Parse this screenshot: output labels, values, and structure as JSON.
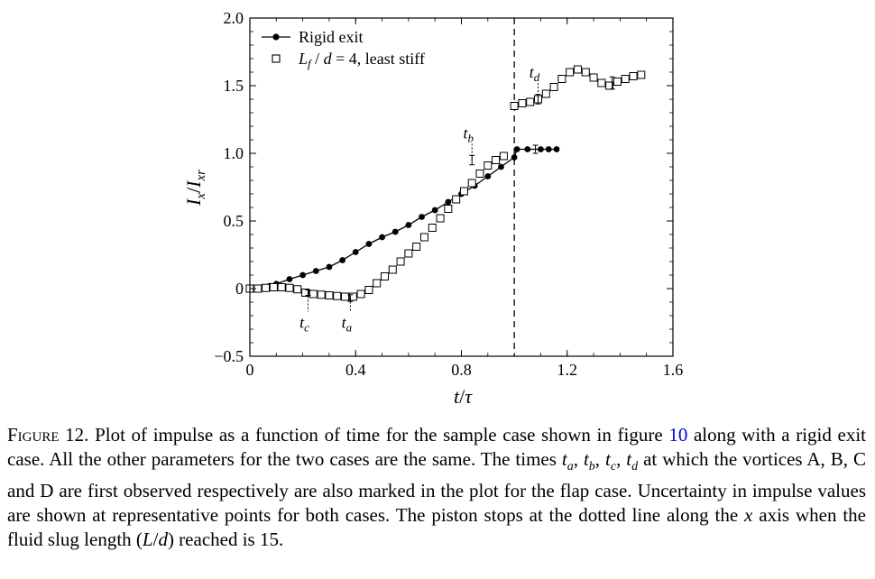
{
  "chart_data": {
    "type": "line",
    "xlabel": "t/τ",
    "ylabel": "Ix/Ixr",
    "xlim": [
      0,
      1.6
    ],
    "ylim": [
      -0.5,
      2.0
    ],
    "x_ticks": [
      {
        "value": 0,
        "label": "0"
      },
      {
        "value": 0.4,
        "label": "0.4"
      },
      {
        "value": 0.8,
        "label": "0.8"
      },
      {
        "value": 1.2,
        "label": "1.2"
      },
      {
        "value": 1.6,
        "label": "1.6"
      }
    ],
    "y_ticks": [
      {
        "value": -0.5,
        "label": "−0.5"
      },
      {
        "value": 0,
        "label": "0"
      },
      {
        "value": 0.5,
        "label": "0.5"
      },
      {
        "value": 1.0,
        "label": "1.0"
      },
      {
        "value": 1.5,
        "label": "1.5"
      },
      {
        "value": 2.0,
        "label": "2.0"
      }
    ],
    "grid": false,
    "legend_position": "top-left",
    "series": [
      {
        "name": "Rigid exit",
        "marker": "filled-circle",
        "line": true,
        "x": [
          0,
          0.025,
          0.05,
          0.075,
          0.1,
          0.15,
          0.2,
          0.25,
          0.3,
          0.35,
          0.4,
          0.45,
          0.5,
          0.55,
          0.6,
          0.65,
          0.7,
          0.75,
          0.8,
          0.85,
          0.9,
          0.95,
          1.0,
          1.01,
          1.05,
          1.1,
          1.13,
          1.16
        ],
        "y": [
          0,
          0.003,
          0.01,
          0.02,
          0.035,
          0.07,
          0.1,
          0.13,
          0.16,
          0.21,
          0.27,
          0.33,
          0.38,
          0.42,
          0.47,
          0.53,
          0.58,
          0.64,
          0.7,
          0.76,
          0.83,
          0.9,
          0.97,
          1.03,
          1.03,
          1.03,
          1.03,
          1.03
        ],
        "error_bars": [
          {
            "x": 1.08,
            "y": 1.03,
            "err": 0.03
          }
        ]
      },
      {
        "name": "Lf/d = 4, least stiff",
        "marker": "open-square",
        "line": false,
        "x": [
          0,
          0.03,
          0.06,
          0.09,
          0.12,
          0.15,
          0.18,
          0.21,
          0.24,
          0.27,
          0.3,
          0.33,
          0.36,
          0.39,
          0.42,
          0.45,
          0.48,
          0.51,
          0.54,
          0.57,
          0.6,
          0.63,
          0.66,
          0.69,
          0.72,
          0.75,
          0.78,
          0.81,
          0.84,
          0.87,
          0.9,
          0.93,
          0.96,
          1.0,
          1.03,
          1.06,
          1.09,
          1.12,
          1.15,
          1.18,
          1.21,
          1.24,
          1.27,
          1.3,
          1.33,
          1.36,
          1.39,
          1.42,
          1.45,
          1.48
        ],
        "y": [
          0,
          0,
          0.005,
          0.01,
          0.01,
          0.005,
          -0.005,
          -0.03,
          -0.04,
          -0.045,
          -0.05,
          -0.055,
          -0.06,
          -0.06,
          -0.04,
          -0.01,
          0.04,
          0.09,
          0.14,
          0.2,
          0.26,
          0.31,
          0.38,
          0.45,
          0.52,
          0.59,
          0.66,
          0.72,
          0.78,
          0.85,
          0.91,
          0.95,
          0.98,
          1.35,
          1.37,
          1.38,
          1.4,
          1.44,
          1.49,
          1.55,
          1.6,
          1.62,
          1.6,
          1.56,
          1.52,
          1.5,
          1.53,
          1.55,
          1.57,
          1.58
        ],
        "error_bars": [
          {
            "x": 0.22,
            "y": -0.03,
            "err": 0.02
          },
          {
            "x": 0.38,
            "y": -0.07,
            "err": 0.025
          },
          {
            "x": 0.84,
            "y": 0.95,
            "err": 0.035
          },
          {
            "x": 1.09,
            "y": 1.4,
            "err": 0.035
          },
          {
            "x": 1.37,
            "y": 1.52,
            "err": 0.045
          }
        ]
      }
    ],
    "reference_line": {
      "orientation": "vertical",
      "x": 1.0,
      "style": "dashed"
    },
    "annotations": [
      {
        "label": "t",
        "sub": "a",
        "x": 0.38,
        "y_from": -0.07,
        "y_to": -0.17
      },
      {
        "label": "t",
        "sub": "b",
        "x": 0.84,
        "y_from": 0.95,
        "y_to": 1.07
      },
      {
        "label": "t",
        "sub": "c",
        "x": 0.22,
        "y_from": -0.03,
        "y_to": -0.17
      },
      {
        "label": "t",
        "sub": "d",
        "x": 1.09,
        "y_from": 1.4,
        "y_to": 1.52
      }
    ]
  },
  "legend": {
    "series1": "Rigid exit",
    "series2_suffix": "= 4, least stiff"
  },
  "caption": {
    "label": "Figure 12.",
    "text_1": "Plot of impulse as a function of time for the sample case shown in figure",
    "figure_ref": "10",
    "text_2": "along with a rigid exit case. All the other parameters for the two cases are the same. The times",
    "text_3": "at which the vortices A, B, C and D are first observed respectively are also marked in the plot for the flap case. Uncertainty in impulse values are shown at representative points for both cases. The piston stops at the dotted line along the",
    "text_4": "axis when the fluid slug length (",
    "text_5": ") reached is 15."
  }
}
